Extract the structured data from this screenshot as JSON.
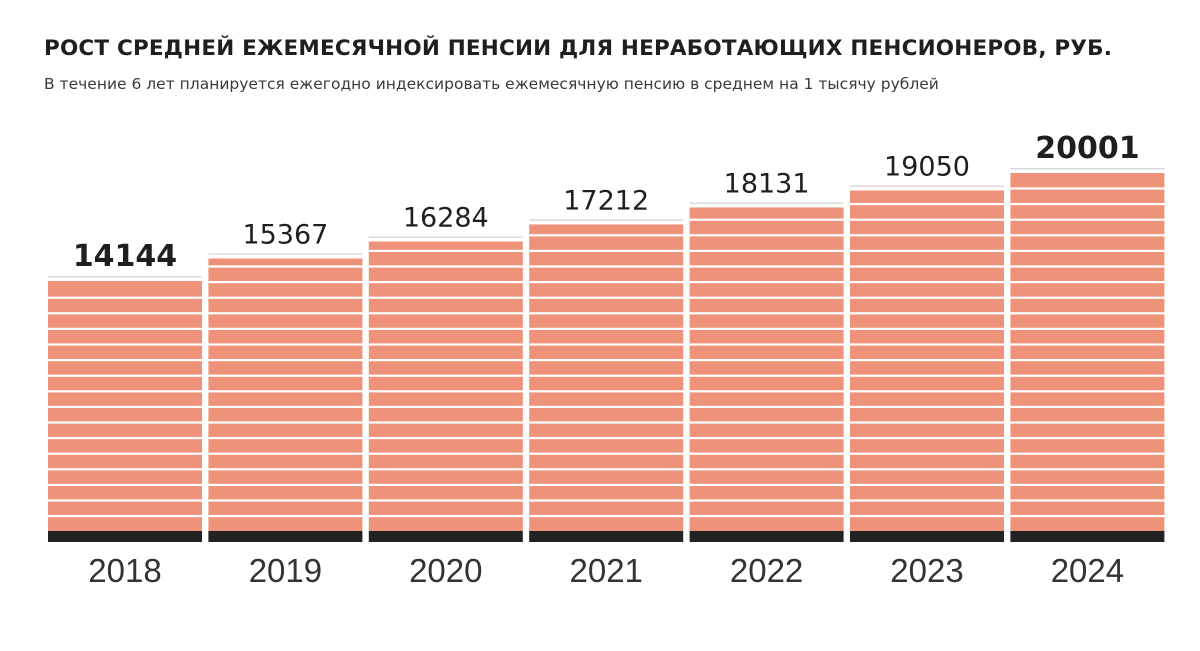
{
  "header": {
    "title": "РОСТ СРЕДНЕЙ ЕЖЕМЕСЯЧНОЙ ПЕНСИИ ДЛЯ НЕРАБОТАЮЩИХ ПЕНСИОНЕРОВ, РУБ.",
    "subtitle": "В течение 6 лет планируется ежегодно индексировать ежемесячную пенсию в среднем на 1 тысячу рублей"
  },
  "chart_data": {
    "type": "bar",
    "title": "РОСТ СРЕДНЕЙ ЕЖЕМЕСЯЧНОЙ ПЕНСИИ ДЛЯ НЕРАБОТАЮЩИХ ПЕНСИОНЕРОВ, РУБ.",
    "subtitle": "В течение 6 лет планируется ежегодно индексировать ежемесячную пенсию в среднем на 1 тысячу рублей",
    "categories": [
      "2018",
      "2019",
      "2020",
      "2021",
      "2022",
      "2023",
      "2024"
    ],
    "values": [
      14144,
      15367,
      16284,
      17212,
      18131,
      19050,
      20001
    ],
    "value_labels": [
      "14144",
      "15367",
      "16284",
      "17212",
      "18131",
      "19050",
      "20001"
    ],
    "emphasized_categories": [
      "2018",
      "2024"
    ],
    "xlabel": "",
    "ylabel": "",
    "bar_color": "#ee927a",
    "stripe_color": "#ffffff",
    "baseline_color": "#222222",
    "grid": false,
    "legend": "none"
  }
}
